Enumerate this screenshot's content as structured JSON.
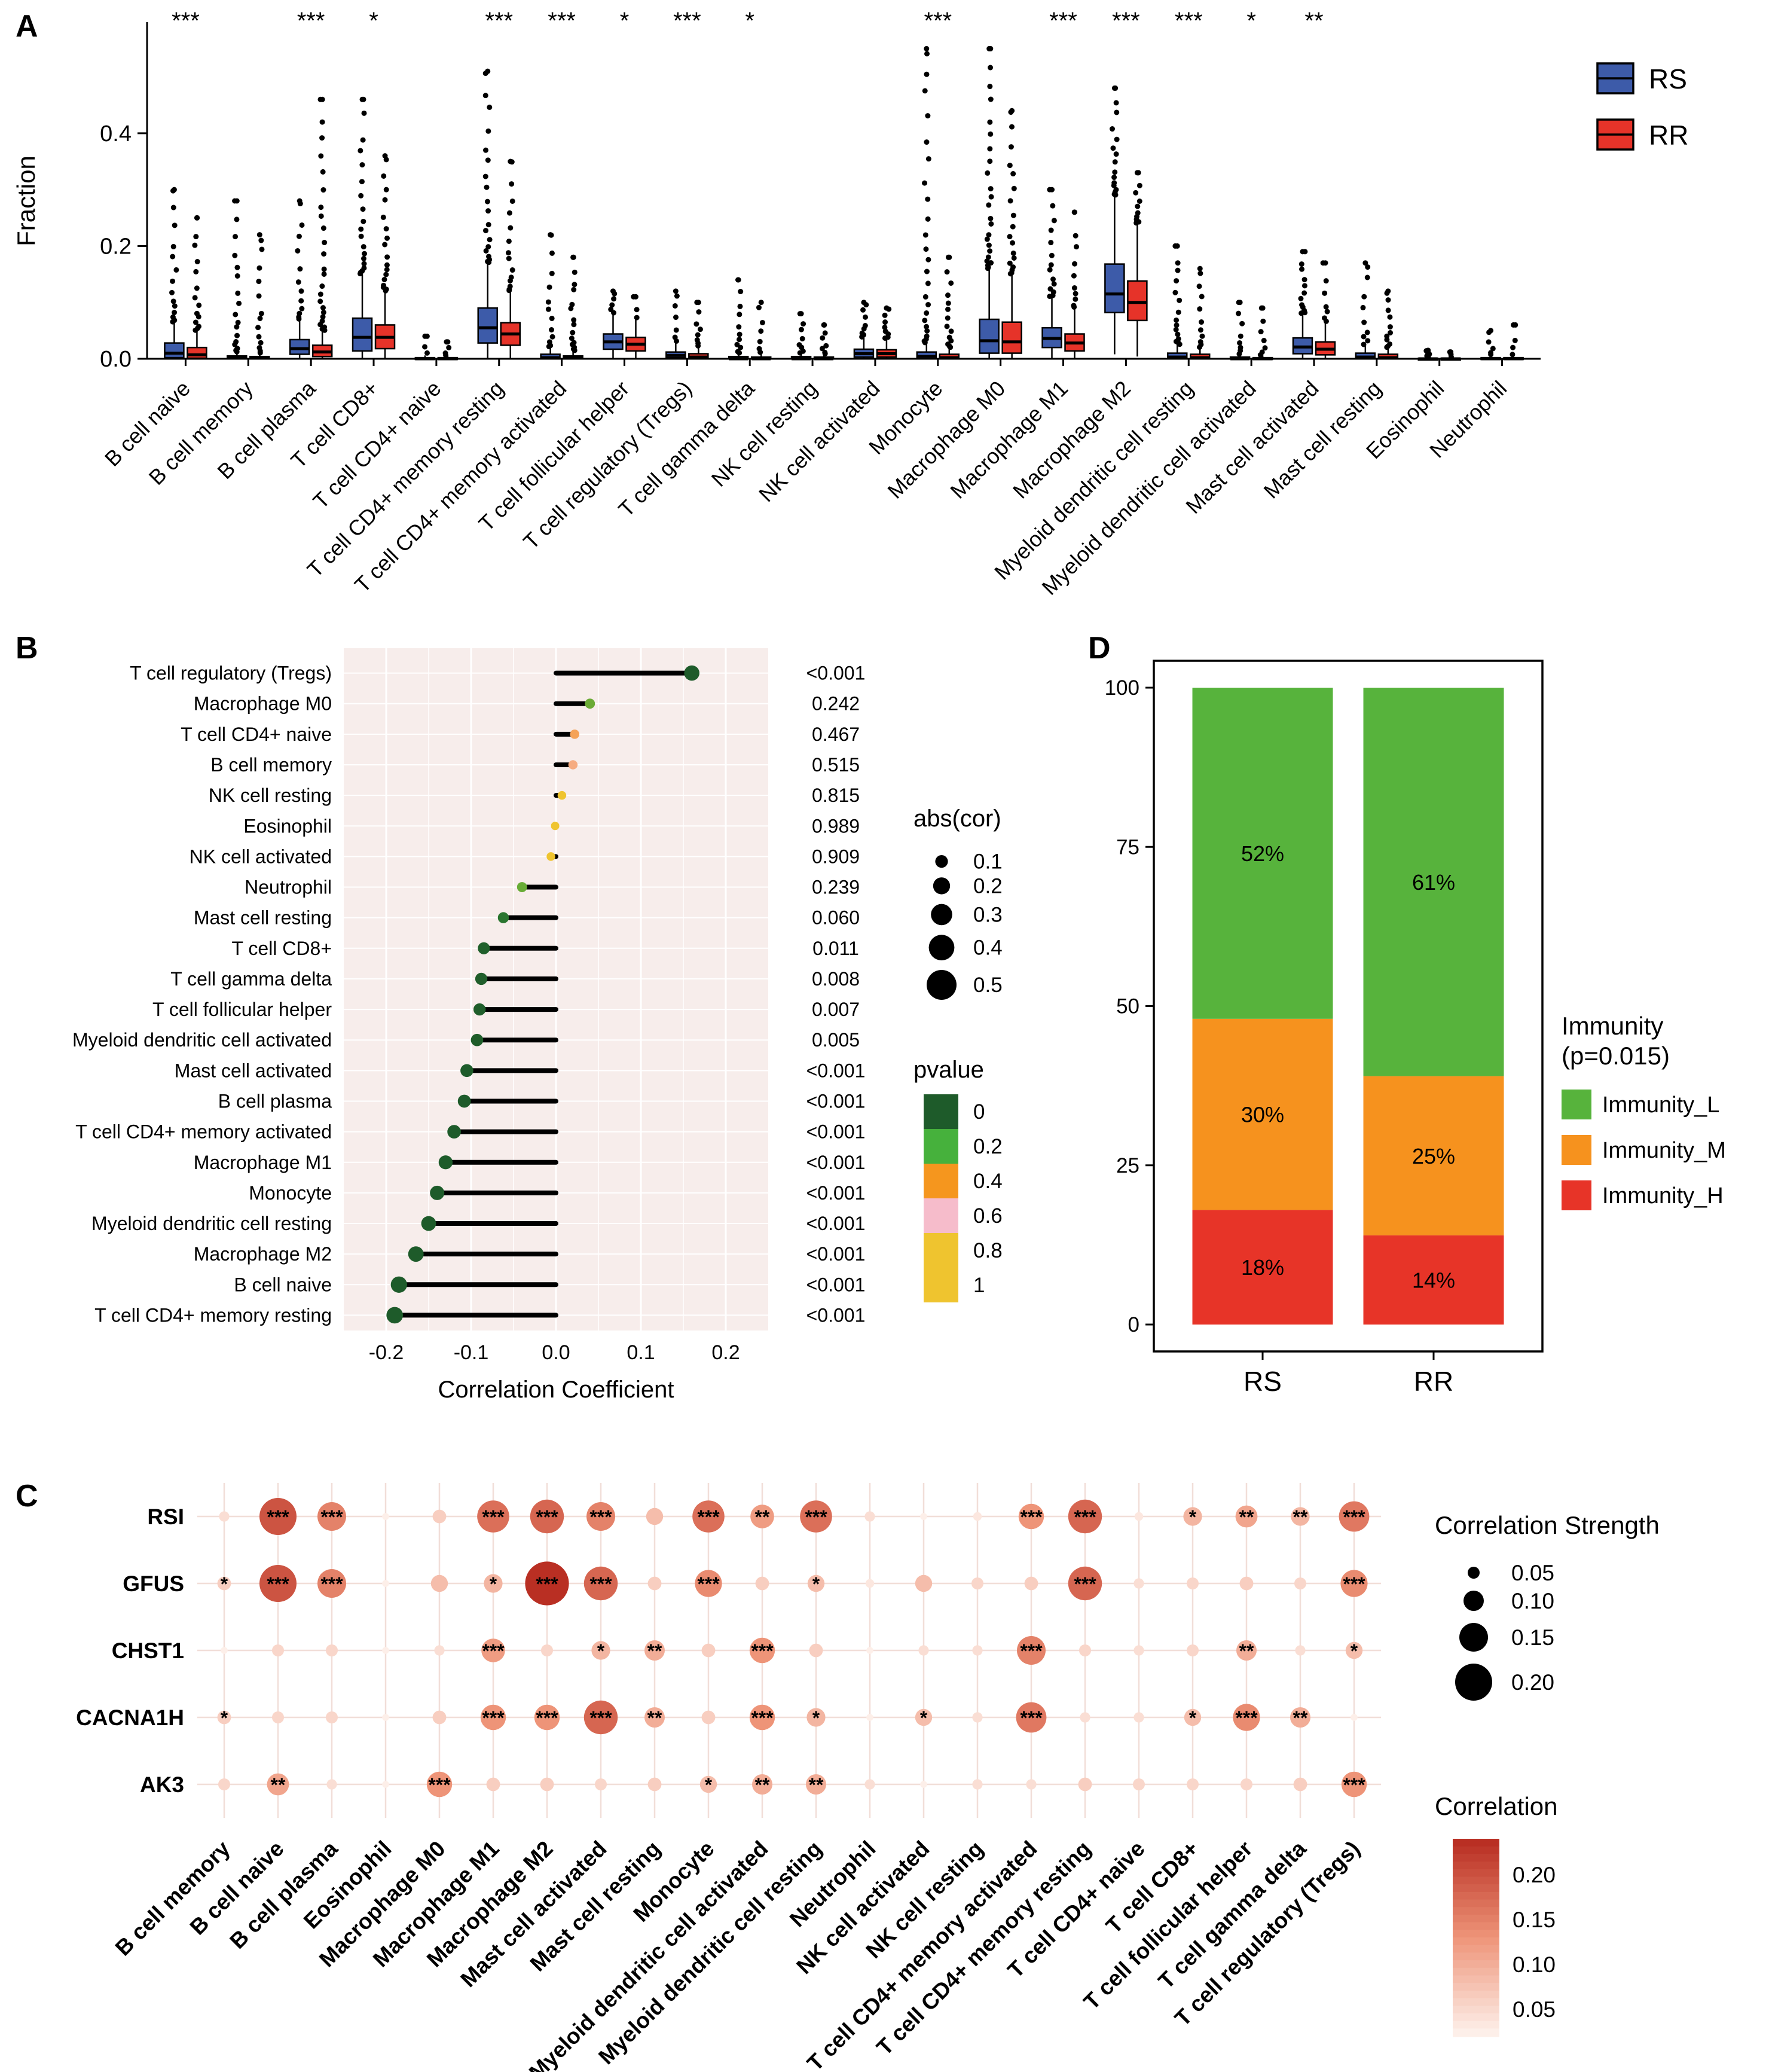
{
  "figure": {
    "background": "#ffffff",
    "panel_labels": {
      "a": "A",
      "b": "B",
      "c": "C",
      "d": "D"
    }
  },
  "chart_data": [
    {
      "panel": "A",
      "type": "boxplot",
      "ylabel": "Fraction",
      "ylim": [
        0,
        0.56
      ],
      "yticks": [
        "0.0",
        "0.2",
        "0.4"
      ],
      "ytick_values": [
        0,
        0.2,
        0.4
      ],
      "legend": [
        {
          "label": "RS",
          "color": "#3D5BA9"
        },
        {
          "label": "RR",
          "color": "#E63329"
        }
      ],
      "categories": [
        "B cell naive",
        "B cell memory",
        "B cell plasma",
        "T cell CD8+",
        "T cell CD4+ naive",
        "T cell CD4+ memory resting",
        "T cell CD4+ memory activated",
        "T cell follicular helper",
        "T cell regulatory (Tregs)",
        "T cell gamma delta",
        "NK cell resting",
        "NK cell activated",
        "Monocyte",
        "Macrophage M0",
        "Macrophage M1",
        "Macrophage M2",
        "Myeloid dendritic cell resting",
        "Myeloid dendritic cell activated",
        "Mast cell activated",
        "Mast cell resting",
        "Eosinophil",
        "Neutrophil"
      ],
      "significance": [
        "***",
        "",
        "***",
        "*",
        "",
        "***",
        "***",
        "*",
        "***",
        "*",
        "",
        "",
        "***",
        "",
        "***",
        "***",
        "***",
        "*",
        "**",
        "",
        "",
        ""
      ],
      "boxes": [
        {
          "rs": [
            0,
            0.002,
            0.01,
            0.028,
            0.065,
            0.3
          ],
          "rr": [
            0,
            0.001,
            0.007,
            0.02,
            0.05,
            0.25
          ]
        },
        {
          "rs": [
            0,
            0,
            0.001,
            0.005,
            0.012,
            0.28
          ],
          "rr": [
            0,
            0,
            0.001,
            0.004,
            0.01,
            0.22
          ]
        },
        {
          "rs": [
            0,
            0.008,
            0.018,
            0.034,
            0.07,
            0.28
          ],
          "rr": [
            0,
            0.004,
            0.012,
            0.024,
            0.05,
            0.46
          ]
        },
        {
          "rs": [
            0,
            0.014,
            0.038,
            0.072,
            0.15,
            0.46
          ],
          "rr": [
            0,
            0.018,
            0.038,
            0.06,
            0.12,
            0.36
          ]
        },
        {
          "rs": [
            0,
            0,
            0,
            0.002,
            0.006,
            0.04
          ],
          "rr": [
            0,
            0,
            0,
            0.002,
            0.005,
            0.03
          ]
        },
        {
          "rs": [
            0,
            0.028,
            0.055,
            0.09,
            0.17,
            0.51
          ],
          "rr": [
            0,
            0.024,
            0.044,
            0.064,
            0.12,
            0.35
          ]
        },
        {
          "rs": [
            0,
            0,
            0.002,
            0.008,
            0.02,
            0.22
          ],
          "rr": [
            0,
            0,
            0.001,
            0.005,
            0.014,
            0.18
          ]
        },
        {
          "rs": [
            0,
            0.017,
            0.03,
            0.044,
            0.08,
            0.12
          ],
          "rr": [
            0,
            0.014,
            0.026,
            0.038,
            0.07,
            0.11
          ]
        },
        {
          "rs": [
            0,
            0.002,
            0.006,
            0.012,
            0.028,
            0.12
          ],
          "rr": [
            0,
            0,
            0.003,
            0.009,
            0.022,
            0.1
          ]
        },
        {
          "rs": [
            0,
            0,
            0,
            0.004,
            0.01,
            0.14
          ],
          "rr": [
            0,
            0,
            0,
            0.003,
            0.008,
            0.1
          ]
        },
        {
          "rs": [
            0,
            0,
            0,
            0.004,
            0.01,
            0.08
          ],
          "rr": [
            0,
            0,
            0,
            0.003,
            0.008,
            0.06
          ]
        },
        {
          "rs": [
            0,
            0.003,
            0.009,
            0.017,
            0.038,
            0.1
          ],
          "rr": [
            0,
            0.003,
            0.009,
            0.016,
            0.036,
            0.09
          ]
        },
        {
          "rs": [
            0,
            0,
            0.004,
            0.012,
            0.028,
            0.55
          ],
          "rr": [
            0,
            0,
            0.002,
            0.008,
            0.02,
            0.18
          ]
        },
        {
          "rs": [
            0,
            0.01,
            0.032,
            0.07,
            0.16,
            0.55
          ],
          "rr": [
            0,
            0.01,
            0.03,
            0.065,
            0.15,
            0.44
          ]
        },
        {
          "rs": [
            0,
            0.02,
            0.036,
            0.055,
            0.11,
            0.3
          ],
          "rr": [
            0,
            0.014,
            0.028,
            0.044,
            0.09,
            0.26
          ]
        },
        {
          "rs": [
            0.008,
            0.082,
            0.115,
            0.168,
            0.29,
            0.48
          ],
          "rr": [
            0.004,
            0.068,
            0.1,
            0.138,
            0.24,
            0.33
          ]
        },
        {
          "rs": [
            0,
            0,
            0.003,
            0.01,
            0.025,
            0.2
          ],
          "rr": [
            0,
            0,
            0.002,
            0.008,
            0.02,
            0.16
          ]
        },
        {
          "rs": [
            0,
            0,
            0,
            0.003,
            0.008,
            0.1
          ],
          "rr": [
            0,
            0,
            0,
            0.002,
            0.006,
            0.09
          ]
        },
        {
          "rs": [
            0,
            0.009,
            0.021,
            0.037,
            0.08,
            0.19
          ],
          "rr": [
            0,
            0.007,
            0.017,
            0.03,
            0.064,
            0.17
          ]
        },
        {
          "rs": [
            0,
            0,
            0.003,
            0.01,
            0.024,
            0.17
          ],
          "rr": [
            0,
            0,
            0.002,
            0.008,
            0.02,
            0.12
          ]
        },
        {
          "rs": [
            0,
            0,
            0,
            0.001,
            0.003,
            0.015
          ],
          "rr": [
            0,
            0,
            0,
            0.001,
            0.003,
            0.012
          ]
        },
        {
          "rs": [
            0,
            0,
            0,
            0.002,
            0.005,
            0.05
          ],
          "rr": [
            0,
            0,
            0,
            0.002,
            0.005,
            0.06
          ]
        }
      ]
    },
    {
      "panel": "B",
      "type": "lollipop",
      "xlabel": "Correlation Coefficient",
      "xlim": [
        -0.25,
        0.25
      ],
      "xticks": [
        "-0.2",
        "-0.1",
        "0.0",
        "0.1",
        "0.2"
      ],
      "xtick_values": [
        -0.2,
        -0.1,
        0,
        0.1,
        0.2
      ],
      "rows": [
        {
          "cell": "T cell regulatory (Tregs)",
          "cor": 0.16,
          "p": 0.0005,
          "pvalue": "<0.001"
        },
        {
          "cell": "Macrophage M0",
          "cor": 0.04,
          "p": 0.242,
          "pvalue": "0.242"
        },
        {
          "cell": "T cell CD4+ naive",
          "cor": 0.022,
          "p": 0.467,
          "pvalue": "0.467"
        },
        {
          "cell": "B cell memory",
          "cor": 0.02,
          "p": 0.515,
          "pvalue": "0.515"
        },
        {
          "cell": "NK cell resting",
          "cor": 0.007,
          "p": 0.815,
          "pvalue": "0.815"
        },
        {
          "cell": "Eosinophil",
          "cor": -0.001,
          "p": 0.989,
          "pvalue": "0.989"
        },
        {
          "cell": "NK cell activated",
          "cor": -0.006,
          "p": 0.909,
          "pvalue": "0.909"
        },
        {
          "cell": "Neutrophil",
          "cor": -0.04,
          "p": 0.239,
          "pvalue": "0.239"
        },
        {
          "cell": "Mast cell resting",
          "cor": -0.062,
          "p": 0.06,
          "pvalue": "0.060"
        },
        {
          "cell": "T cell CD8+",
          "cor": -0.085,
          "p": 0.011,
          "pvalue": "0.011"
        },
        {
          "cell": "T cell gamma delta",
          "cor": -0.088,
          "p": 0.008,
          "pvalue": "0.008"
        },
        {
          "cell": "T cell follicular helper",
          "cor": -0.09,
          "p": 0.007,
          "pvalue": "0.007"
        },
        {
          "cell": "Myeloid dendritic cell activated",
          "cor": -0.093,
          "p": 0.005,
          "pvalue": "0.005"
        },
        {
          "cell": "Mast cell activated",
          "cor": -0.105,
          "p": 0.0005,
          "pvalue": "<0.001"
        },
        {
          "cell": "B cell plasma",
          "cor": -0.108,
          "p": 0.0005,
          "pvalue": "<0.001"
        },
        {
          "cell": "T cell CD4+ memory activated",
          "cor": -0.12,
          "p": 0.0005,
          "pvalue": "<0.001"
        },
        {
          "cell": "Macrophage M1",
          "cor": -0.13,
          "p": 0.0005,
          "pvalue": "<0.001"
        },
        {
          "cell": "Monocyte",
          "cor": -0.14,
          "p": 0.0005,
          "pvalue": "<0.001"
        },
        {
          "cell": "Myeloid dendritic cell resting",
          "cor": -0.15,
          "p": 0.0005,
          "pvalue": "<0.001"
        },
        {
          "cell": "Macrophage M2",
          "cor": -0.165,
          "p": 0.0005,
          "pvalue": "<0.001"
        },
        {
          "cell": "B cell naive",
          "cor": -0.185,
          "p": 0.0005,
          "pvalue": "<0.001"
        },
        {
          "cell": "T cell CD4+ memory resting",
          "cor": -0.19,
          "p": 0.0005,
          "pvalue": "<0.001"
        }
      ],
      "size_legend": {
        "title": "abs(cor)",
        "labels": [
          "0.1",
          "0.2",
          "0.3",
          "0.4",
          "0.5"
        ],
        "values": [
          0.1,
          0.2,
          0.3,
          0.4,
          0.5
        ]
      },
      "pvalue_legend": {
        "title": "pvalue",
        "labels": [
          "0",
          "0.2",
          "0.4",
          "0.6",
          "0.8",
          "1"
        ],
        "values": [
          0,
          0.2,
          0.4,
          0.6,
          0.8,
          1
        ]
      },
      "pvalue_colors": [
        {
          "v": 0,
          "c": "#1E5B2A"
        },
        {
          "v": 0.2,
          "c": "#46B13C"
        },
        {
          "v": 0.4,
          "c": "#F5961E"
        },
        {
          "v": 0.6,
          "c": "#F6BCCB"
        },
        {
          "v": 0.8,
          "c": "#EFC42F"
        },
        {
          "v": 1,
          "c": "#EFC42F"
        }
      ],
      "sig_color": "#CB3B2D",
      "text_color": "#333333"
    },
    {
      "panel": "C",
      "type": "bubble-matrix",
      "rows": [
        "RSI",
        "GFUS",
        "CHST1",
        "CACNA1H",
        "AK3"
      ],
      "columns": [
        "B cell memory",
        "B cell naive",
        "B cell plasma",
        "Eosinophil",
        "Macrophage M0",
        "Macrophage M1",
        "Macrophage M2",
        "Mast cell activated",
        "Mast cell resting",
        "Monocyte",
        "Myeloid dendritic cell activated",
        "Myeloid dendritic cell resting",
        "Neutrophil",
        "NK cell activated",
        "NK cell resting",
        "T cell CD4+ memory activated",
        "T cell CD4+ memory resting",
        "T cell CD4+ naive",
        "T cell CD8+",
        "T cell follicular helper",
        "T cell gamma delta",
        "T cell regulatory (Tregs)"
      ],
      "values": [
        [
          0.04,
          0.2,
          0.15,
          0.02,
          0.06,
          0.17,
          0.18,
          0.15,
          0.08,
          0.17,
          0.12,
          0.17,
          0.04,
          0.02,
          0.03,
          0.13,
          0.18,
          0.03,
          0.09,
          0.11,
          0.09,
          0.16
        ],
        [
          0.06,
          0.2,
          0.15,
          0.02,
          0.08,
          0.09,
          0.24,
          0.18,
          0.06,
          0.14,
          0.06,
          0.08,
          0.03,
          0.08,
          0.05,
          0.06,
          0.18,
          0.04,
          0.05,
          0.06,
          0.05,
          0.14
        ],
        [
          0.02,
          0.05,
          0.05,
          0.02,
          0.04,
          0.12,
          0.05,
          0.09,
          0.1,
          0.06,
          0.13,
          0.06,
          0.02,
          0.04,
          0.04,
          0.15,
          0.05,
          0.04,
          0.05,
          0.1,
          0.04,
          0.08
        ],
        [
          0.06,
          0.05,
          0.05,
          0.02,
          0.06,
          0.13,
          0.13,
          0.18,
          0.1,
          0.06,
          0.13,
          0.09,
          0.02,
          0.08,
          0.04,
          0.16,
          0.04,
          0.04,
          0.08,
          0.14,
          0.1,
          0.02
        ],
        [
          0.05,
          0.11,
          0.04,
          0.02,
          0.13,
          0.06,
          0.06,
          0.05,
          0.06,
          0.08,
          0.1,
          0.1,
          0.04,
          0.02,
          0.04,
          0.04,
          0.06,
          0.05,
          0.05,
          0.05,
          0.06,
          0.13
        ]
      ],
      "sig": [
        [
          "",
          "***",
          "***",
          "",
          "",
          "***",
          "***",
          "***",
          "",
          "***",
          "**",
          "***",
          "",
          "",
          "",
          "***",
          "***",
          "",
          "*",
          "**",
          "**",
          "***"
        ],
        [
          "*",
          "***",
          "***",
          "",
          "",
          "*",
          "***",
          "***",
          "",
          "***",
          "",
          "*",
          "",
          "",
          "",
          "",
          "***",
          "",
          "",
          "",
          "",
          "***"
        ],
        [
          "",
          "",
          "",
          "",
          "",
          "***",
          "",
          "*",
          "**",
          "",
          "***",
          "",
          "",
          "",
          "",
          "***",
          "",
          "",
          "",
          "**",
          "",
          "*"
        ],
        [
          "*",
          "",
          "",
          "",
          "",
          "***",
          "***",
          "***",
          "**",
          "",
          "***",
          "*",
          "",
          "*",
          "",
          "***",
          "",
          "",
          "*",
          "***",
          "**",
          ""
        ],
        [
          "",
          "**",
          "",
          "",
          "***",
          "",
          "",
          "",
          "",
          "*",
          "**",
          "**",
          "",
          "",
          "",
          "",
          "",
          "",
          "",
          "",
          "",
          "***"
        ]
      ],
      "size_legend": {
        "title": "Correlation Strength",
        "labels": [
          "0.05",
          "0.10",
          "0.15",
          "0.20"
        ],
        "values": [
          0.05,
          0.1,
          0.15,
          0.2
        ]
      },
      "color_legend": {
        "title": "Correlation",
        "labels": [
          "0.20",
          "0.15",
          "0.10",
          "0.05"
        ],
        "values": [
          0.2,
          0.15,
          0.1,
          0.05
        ]
      },
      "color_ramp": [
        {
          "v": 0.02,
          "c": "#FDEFE9"
        },
        {
          "v": 0.13,
          "c": "#EE9478"
        },
        {
          "v": 0.24,
          "c": "#B92F23"
        }
      ]
    },
    {
      "panel": "D",
      "type": "stacked_bar",
      "categories": [
        "RS",
        "RR"
      ],
      "yticks": [
        "0",
        "25",
        "50",
        "75",
        "100"
      ],
      "ytick_values": [
        0,
        25,
        50,
        75,
        100
      ],
      "legend_title_line1": "Immunity",
      "legend_title_line2": "(p=0.015)",
      "series": [
        {
          "name": "Immunity_L",
          "color": "#57B33C",
          "values": [
            52,
            61
          ]
        },
        {
          "name": "Immunity_M",
          "color": "#F6921E",
          "values": [
            30,
            25
          ]
        },
        {
          "name": "Immunity_H",
          "color": "#E73428",
          "values": [
            18,
            14
          ]
        }
      ]
    }
  ]
}
